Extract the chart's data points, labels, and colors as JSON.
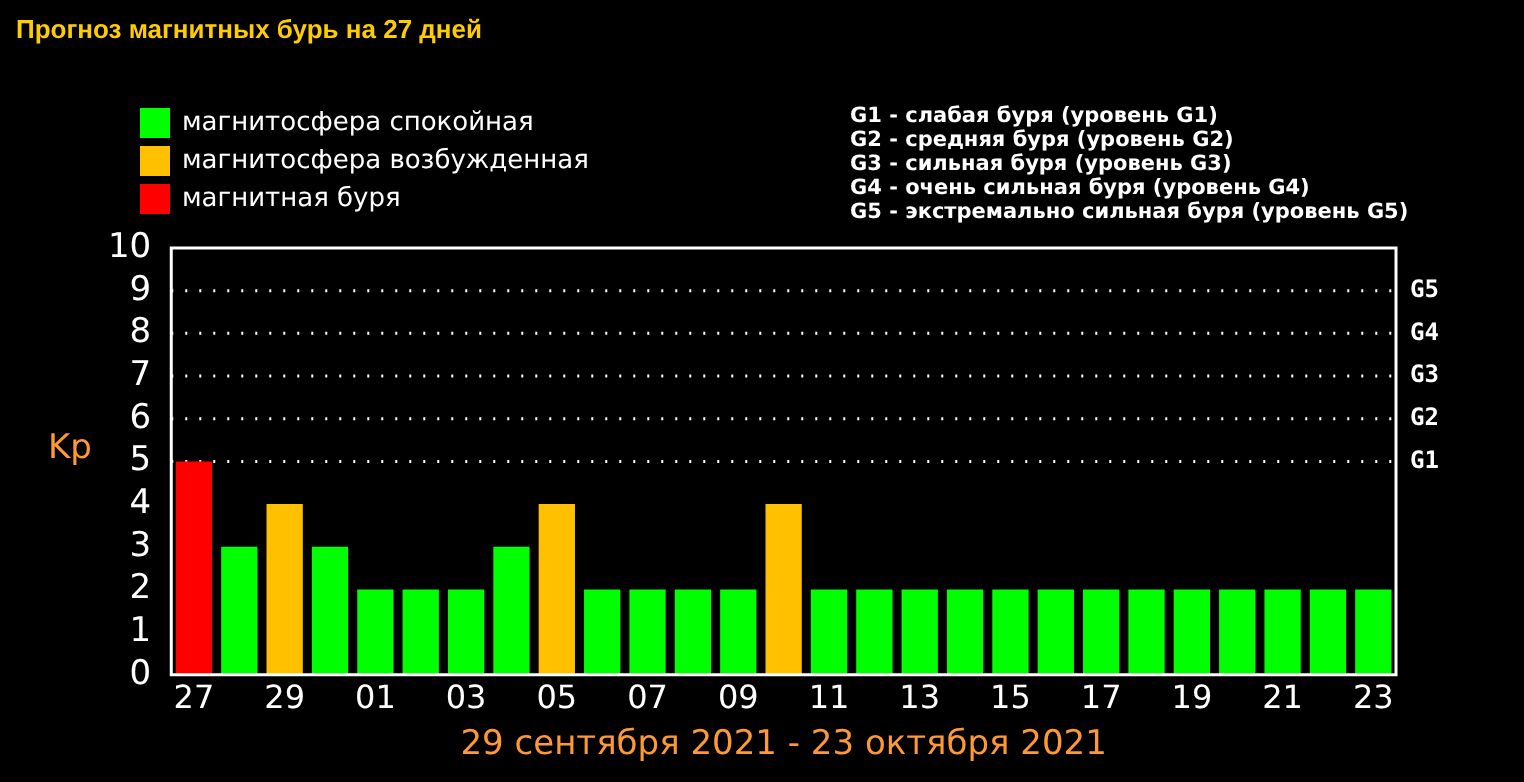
{
  "chart_data": {
    "type": "bar",
    "title": "Прогноз магнитных бурь на 27 дней",
    "xlabel": "29 сентября 2021 - 23 октября 2021",
    "ylabel": "Kp",
    "categories": [
      "27",
      null,
      "29",
      null,
      "01",
      null,
      "03",
      null,
      "05",
      null,
      "07",
      null,
      "09",
      null,
      "11",
      null,
      "13",
      null,
      "15",
      null,
      "17",
      null,
      "19",
      null,
      "21",
      null,
      "23"
    ],
    "legend": "top left",
    "series": [
      {
        "name": "магнитосфера спокойная",
        "color": "#00ff00",
        "values": [
          null,
          3,
          null,
          3,
          2,
          2,
          2,
          3,
          null,
          2,
          2,
          2,
          2,
          null,
          2,
          2,
          2,
          2,
          2,
          2,
          2,
          2,
          2,
          2,
          2,
          2,
          2
        ]
      },
      {
        "name": "магнитосфера возбужденная",
        "color": "#ffc000",
        "values": [
          null,
          null,
          4,
          null,
          null,
          null,
          null,
          null,
          4,
          null,
          null,
          null,
          null,
          4,
          null,
          null,
          null,
          null,
          null,
          null,
          null,
          null,
          null,
          null,
          null,
          null,
          null
        ]
      },
      {
        "name": "магнитная буря",
        "color": "#ff0000",
        "values": [
          5,
          null,
          null,
          null,
          null,
          null,
          null,
          null,
          null,
          null,
          null,
          null,
          null,
          null,
          null,
          null,
          null,
          null,
          null,
          null,
          null,
          null,
          null,
          null,
          null,
          null,
          null
        ]
      }
    ],
    "ylim": [
      0,
      10
    ],
    "yticks": [
      0,
      1,
      2,
      3,
      4,
      5,
      6,
      7,
      8,
      9,
      10
    ],
    "ref_lines": [
      {
        "axis": "y",
        "value": 5,
        "label": "G1",
        "color": "#ffffff",
        "line_style": "dotted"
      },
      {
        "axis": "y",
        "value": 6,
        "label": "G2",
        "color": "#ffffff",
        "line_style": "dotted"
      },
      {
        "axis": "y",
        "value": 7,
        "label": "G3",
        "color": "#ffffff",
        "line_style": "dotted"
      },
      {
        "axis": "y",
        "value": 8,
        "label": "G4",
        "color": "#ffffff",
        "line_style": "dotted"
      },
      {
        "axis": "y",
        "value": 9,
        "label": "G5",
        "color": "#ffffff",
        "line_style": "dotted"
      }
    ],
    "annotations": [
      "G1 - слабая буря (уровень G1)",
      "G2 - средняя буря (уровень G2)",
      "G3 - сильная буря (уровень G3)",
      "G4 - очень сильная буря (уровень G4)",
      "G5 - экстремально сильная буря (уровень G5)"
    ]
  }
}
